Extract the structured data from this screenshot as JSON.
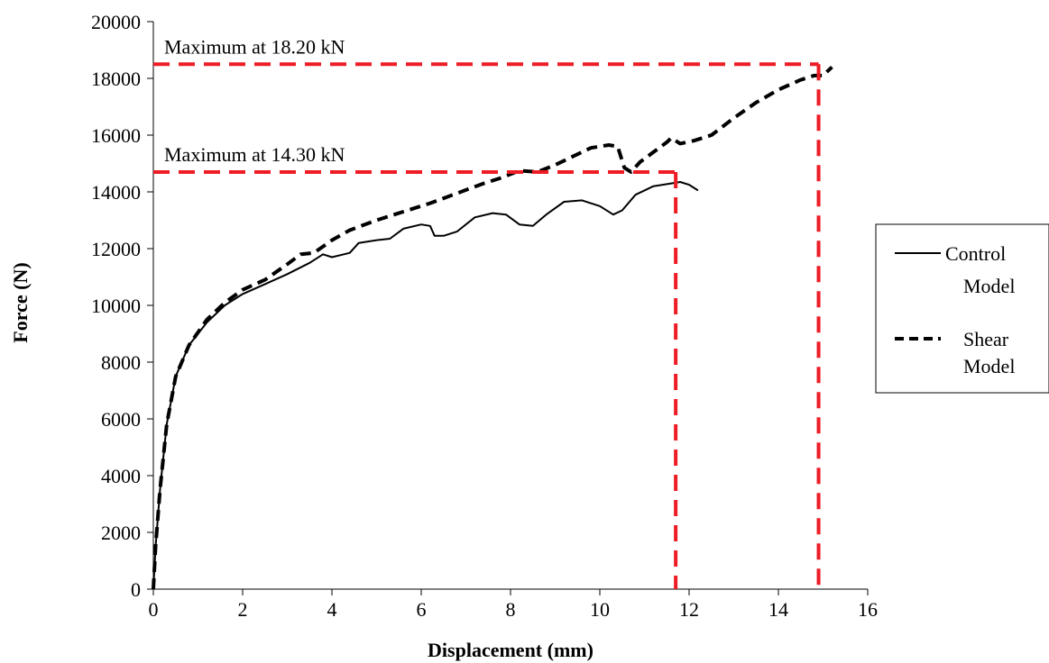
{
  "chart_data": {
    "type": "line",
    "xlabel": "Displacement (mm)",
    "ylabel": "Force (N)",
    "xlim": [
      0,
      16
    ],
    "ylim": [
      0,
      20000
    ],
    "x_ticks": [
      0,
      2,
      4,
      6,
      8,
      10,
      12,
      14,
      16
    ],
    "y_ticks": [
      0,
      2000,
      4000,
      6000,
      8000,
      10000,
      12000,
      14000,
      16000,
      18000,
      20000
    ],
    "grid": false,
    "legend_position": "right",
    "series": [
      {
        "name": "Control Model",
        "style": "solid",
        "color": "#000000",
        "points": [
          [
            0,
            0
          ],
          [
            0.05,
            1500
          ],
          [
            0.15,
            3500
          ],
          [
            0.3,
            5800
          ],
          [
            0.5,
            7500
          ],
          [
            0.8,
            8600
          ],
          [
            1.2,
            9400
          ],
          [
            1.6,
            10000
          ],
          [
            2,
            10400
          ],
          [
            2.5,
            10750
          ],
          [
            3,
            11100
          ],
          [
            3.5,
            11500
          ],
          [
            3.8,
            11800
          ],
          [
            4,
            11700
          ],
          [
            4.4,
            11850
          ],
          [
            4.6,
            12200
          ],
          [
            5,
            12300
          ],
          [
            5.3,
            12350
          ],
          [
            5.6,
            12700
          ],
          [
            6,
            12850
          ],
          [
            6.2,
            12800
          ],
          [
            6.3,
            12450
          ],
          [
            6.5,
            12450
          ],
          [
            6.8,
            12600
          ],
          [
            7.2,
            13100
          ],
          [
            7.6,
            13250
          ],
          [
            7.9,
            13200
          ],
          [
            8.2,
            12850
          ],
          [
            8.5,
            12800
          ],
          [
            8.8,
            13200
          ],
          [
            9.2,
            13650
          ],
          [
            9.6,
            13700
          ],
          [
            10,
            13500
          ],
          [
            10.3,
            13200
          ],
          [
            10.5,
            13350
          ],
          [
            10.8,
            13900
          ],
          [
            11.2,
            14200
          ],
          [
            11.6,
            14300
          ],
          [
            11.8,
            14350
          ],
          [
            12,
            14250
          ],
          [
            12.2,
            14050
          ]
        ]
      },
      {
        "name": "Shear Model",
        "style": "dashed",
        "color": "#000000",
        "points": [
          [
            0,
            0
          ],
          [
            0.05,
            1500
          ],
          [
            0.15,
            3500
          ],
          [
            0.3,
            5800
          ],
          [
            0.5,
            7500
          ],
          [
            0.8,
            8600
          ],
          [
            1.2,
            9500
          ],
          [
            1.6,
            10100
          ],
          [
            2,
            10550
          ],
          [
            2.5,
            10900
          ],
          [
            3,
            11450
          ],
          [
            3.3,
            11800
          ],
          [
            3.6,
            11850
          ],
          [
            4,
            12300
          ],
          [
            4.4,
            12650
          ],
          [
            5,
            13000
          ],
          [
            5.6,
            13300
          ],
          [
            6.2,
            13600
          ],
          [
            6.8,
            13950
          ],
          [
            7.4,
            14300
          ],
          [
            7.8,
            14500
          ],
          [
            8.2,
            14750
          ],
          [
            8.6,
            14700
          ],
          [
            9,
            14950
          ],
          [
            9.4,
            15250
          ],
          [
            9.8,
            15550
          ],
          [
            10.2,
            15650
          ],
          [
            10.4,
            15600
          ],
          [
            10.55,
            14850
          ],
          [
            10.7,
            14700
          ],
          [
            10.9,
            15050
          ],
          [
            11.2,
            15400
          ],
          [
            11.5,
            15750
          ],
          [
            11.6,
            15900
          ],
          [
            11.8,
            15700
          ],
          [
            12.1,
            15800
          ],
          [
            12.5,
            16000
          ],
          [
            13,
            16600
          ],
          [
            13.5,
            17150
          ],
          [
            14,
            17600
          ],
          [
            14.5,
            17950
          ],
          [
            14.8,
            18100
          ],
          [
            15,
            18100
          ],
          [
            15.2,
            18400
          ]
        ]
      }
    ],
    "annotations": [
      {
        "text": "Maximum at 18.20 kN",
        "hline_y": 18500,
        "vline_x": 14.9
      },
      {
        "text": "Maximum at 14.30 kN",
        "hline_y": 14700,
        "vline_x": 11.7
      }
    ],
    "annotation_color": "#ee1c25"
  }
}
